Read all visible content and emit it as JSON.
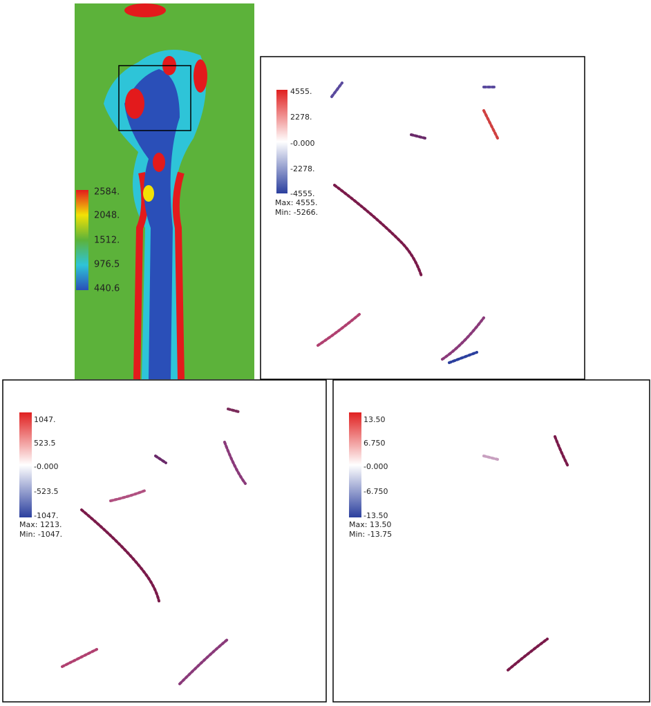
{
  "panels": [
    {
      "colorbar": [
        "2584.",
        "2048.",
        "1512.",
        "976.5",
        "440.6"
      ]
    },
    {
      "colorbar": [
        "4555.",
        "2278.",
        "-0.000",
        "-2278.",
        "-4555."
      ],
      "max": "Max:  4555.",
      "min": "Min: -5266."
    },
    {
      "colorbar": [
        "1047.",
        "523.5",
        "-0.000",
        "-523.5",
        "-1047."
      ],
      "max": "Max:  1213.",
      "min": "Min: -1047."
    },
    {
      "colorbar": [
        "13.50",
        "6.750",
        "-0.000",
        "-6.750",
        "-13.50"
      ],
      "max": "Max:  13.50",
      "min": "Min: -13.75"
    }
  ]
}
